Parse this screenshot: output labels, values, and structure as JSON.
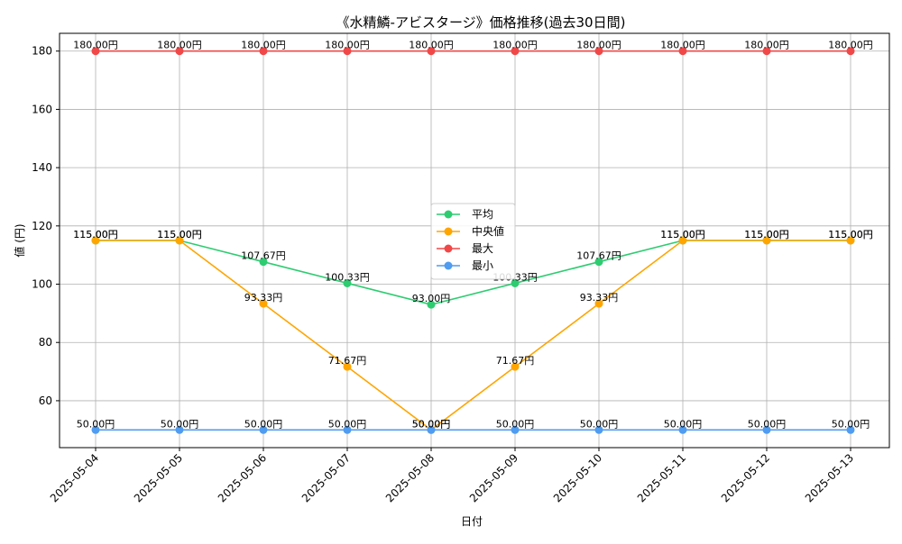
{
  "chart_data": {
    "type": "line",
    "title": "《水精鱗-アビスタージ》価格推移(過去30日間)",
    "xlabel": "日付",
    "ylabel": "値 (円)",
    "ylim": [
      43.9,
      186.1
    ],
    "yticks": [
      60,
      80,
      100,
      120,
      140,
      160,
      180
    ],
    "grid": true,
    "legend_position": "center",
    "categories": [
      "2025-05-04",
      "2025-05-05",
      "2025-05-06",
      "2025-05-07",
      "2025-05-08",
      "2025-05-09",
      "2025-05-10",
      "2025-05-11",
      "2025-05-12",
      "2025-05-13"
    ],
    "series": [
      {
        "name": "平均",
        "color": "#2ecc71",
        "values": [
          115.0,
          115.0,
          107.67,
          100.33,
          93.0,
          100.33,
          107.67,
          115.0,
          115.0,
          115.0
        ],
        "labels": [
          "115.00円",
          "115.00円",
          "107.67円",
          "100.33円",
          "93.00円",
          "100.33円",
          "107.67円",
          "115.00円",
          "115.00円",
          "115.00円"
        ]
      },
      {
        "name": "中央値",
        "color": "#ffa500",
        "values": [
          115.0,
          115.0,
          93.33,
          71.67,
          50.0,
          71.67,
          93.33,
          115.0,
          115.0,
          115.0
        ],
        "labels": [
          "115.00円",
          "115.00円",
          "93.33円",
          "71.67円",
          "50.00円",
          "71.67円",
          "93.33円",
          "115.00円",
          "115.00円",
          "115.00円"
        ]
      },
      {
        "name": "最大",
        "color": "#f04848",
        "values": [
          180.0,
          180.0,
          180.0,
          180.0,
          180.0,
          180.0,
          180.0,
          180.0,
          180.0,
          180.0
        ],
        "labels": [
          "180.00円",
          "180.00円",
          "180.00円",
          "180.00円",
          "180.00円",
          "180.00円",
          "180.00円",
          "180.00円",
          "180.00円",
          "180.00円"
        ]
      },
      {
        "name": "最小",
        "color": "#4f9cf0",
        "values": [
          50.0,
          50.0,
          50.0,
          50.0,
          50.0,
          50.0,
          50.0,
          50.0,
          50.0,
          50.0
        ],
        "labels": [
          "50.00円",
          "50.00円",
          "50.00円",
          "50.00円",
          "50.00円",
          "50.00円",
          "50.00円",
          "50.00円",
          "50.00円",
          "50.00円"
        ]
      }
    ]
  }
}
